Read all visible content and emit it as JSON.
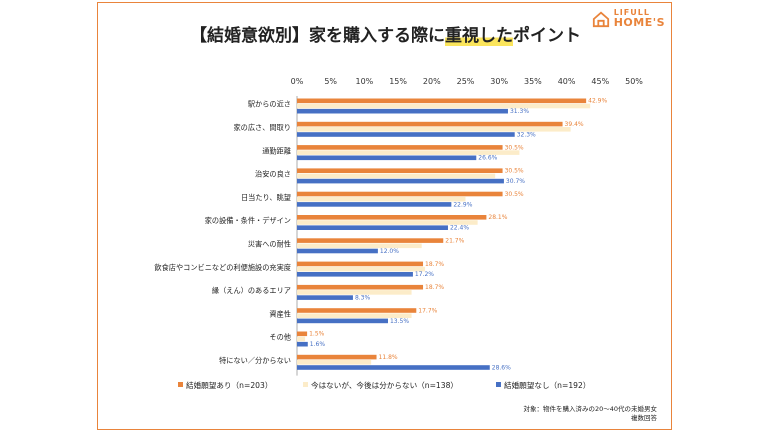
{
  "header": {
    "title_prefix": "【結婚意欲別】家を購入する際に",
    "title_highlight": "重視した",
    "title_suffix": "ポイント"
  },
  "logo": {
    "line1": "LIFULL",
    "line2": "HOME'S"
  },
  "note": {
    "line1": "対象：物件を購入済みの20～40代の未婚男女",
    "line2": "複数回答"
  },
  "colors": {
    "series1": "#e9843b",
    "series2": "#fcecc9",
    "series3": "#4670c4",
    "frame": "#e9843b"
  },
  "chart_data": {
    "type": "bar",
    "orientation": "horizontal",
    "xlim": [
      0,
      50
    ],
    "ticks": [
      "0%",
      "5%",
      "10%",
      "15%",
      "20%",
      "25%",
      "30%",
      "35%",
      "40%",
      "45%",
      "50%"
    ],
    "categories": [
      "駅からの近さ",
      "家の広さ、間取り",
      "通勤距離",
      "治安の良さ",
      "日当たり、眺望",
      "家の設備・条件・デザイン",
      "災害への耐性",
      "飲食店やコンビニなどの利便施設の充実度",
      "縁（えん）のあるエリア",
      "資産性",
      "その他",
      "特にない／分からない"
    ],
    "series": [
      {
        "name": "結婚願望あり（n=203）",
        "values": [
          42.9,
          39.4,
          30.5,
          30.5,
          30.5,
          28.1,
          21.7,
          18.7,
          18.7,
          17.7,
          1.5,
          11.8
        ],
        "labels": [
          "42.9%",
          "39.4%",
          "30.5%",
          "30.5%",
          "30.5%",
          "28.1%",
          "21.7%",
          "18.7%",
          "18.7%",
          "17.7%",
          "1.5%",
          "11.8%"
        ]
      },
      {
        "name": "今はないが、今後は分からない（n=138）",
        "values": [
          43.5,
          40.6,
          33.0,
          29.4,
          25.0,
          26.8,
          18.5,
          19.0,
          17.0,
          17.0,
          1.2,
          11.0
        ],
        "labels": []
      },
      {
        "name": "結婚願望なし（n=192）",
        "values": [
          31.3,
          32.3,
          26.6,
          30.7,
          22.9,
          22.4,
          12.0,
          17.2,
          8.3,
          13.5,
          1.6,
          28.6
        ],
        "labels": [
          "31.3%",
          "32.3%",
          "26.6%",
          "30.7%",
          "22.9%",
          "22.4%",
          "12.0%",
          "17.2%",
          "8.3%",
          "13.5%",
          "1.6%",
          "28.6%"
        ]
      }
    ],
    "grid": false,
    "legend_position": "bottom"
  }
}
